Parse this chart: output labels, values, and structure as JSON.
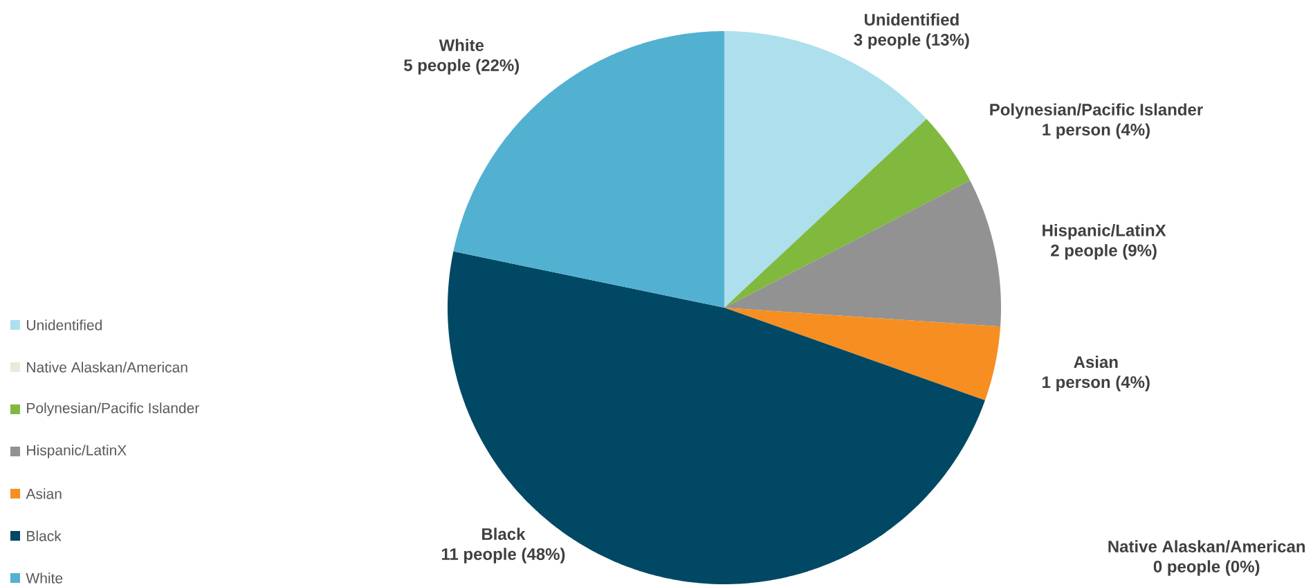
{
  "chart_data": {
    "type": "pie",
    "categories": [
      "Unidentified",
      "Native Alaskan/American",
      "Polynesian/Pacific Islander",
      "Hispanic/LatinX",
      "Asian",
      "Black",
      "White"
    ],
    "values": [
      3,
      0,
      1,
      2,
      1,
      11,
      5
    ],
    "colors": [
      "#aedfec",
      "#ebe8dc",
      "#80b93e",
      "#929292",
      "#f68e21",
      "#004864",
      "#52b1d0"
    ],
    "value_labels": [
      "3 people (13%)",
      "0 people (0%)",
      "1 person (4%)",
      "2 people (9%)",
      "1 person (4%)",
      "11 people (48%)",
      "5 people (22%)"
    ],
    "legend": "left"
  }
}
